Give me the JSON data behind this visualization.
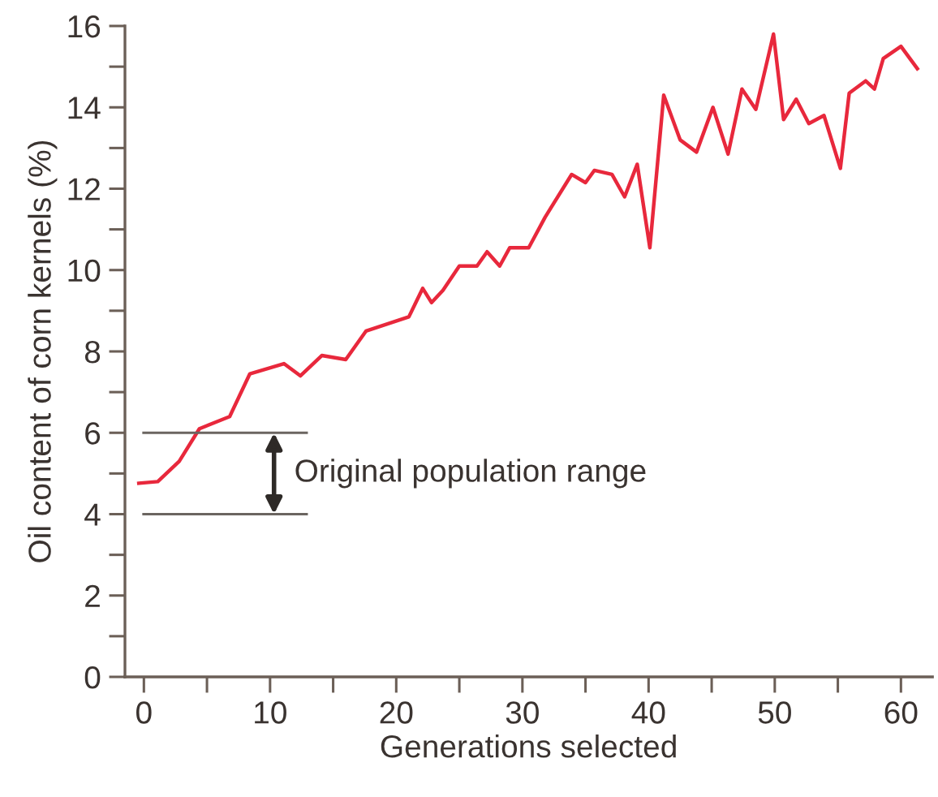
{
  "chart_data": {
    "type": "line",
    "xlabel": "Generations selected",
    "ylabel": "Oil content of corn kernels (%)",
    "xlim": [
      -1.5,
      62.5
    ],
    "ylim": [
      0,
      16
    ],
    "xticks": [
      0,
      {
        "value": 5,
        "label": null
      },
      10,
      {
        "value": 15,
        "label": null
      },
      20,
      {
        "value": 25,
        "label": null
      },
      30,
      {
        "value": 35,
        "label": null
      },
      40,
      {
        "value": 45,
        "label": null
      },
      50,
      {
        "value": 55,
        "label": null
      },
      60
    ],
    "yticks": [
      0,
      {
        "value": 1,
        "label": null
      },
      2,
      {
        "value": 3,
        "label": null
      },
      4,
      {
        "value": 5,
        "label": null
      },
      6,
      {
        "value": 7,
        "label": null
      },
      8,
      {
        "value": 9,
        "label": null
      },
      10,
      {
        "value": 11,
        "label": null
      },
      12,
      {
        "value": 13,
        "label": null
      },
      14,
      {
        "value": 15,
        "label": null
      },
      16
    ],
    "grid": false,
    "marker": "none",
    "line_style": "solid",
    "series": [
      {
        "color": "#e8283c",
        "x": [
          -0.4,
          1.1,
          2.8,
          4.4,
          6.8,
          8.4,
          11.1,
          12.4,
          14.1,
          16.0,
          17.6,
          21.0,
          22.1,
          22.8,
          23.7,
          25.0,
          26.4,
          27.2,
          28.2,
          29.0,
          30.5,
          31.8,
          33.9,
          35.0,
          35.7,
          37.1,
          38.1,
          39.1,
          40.1,
          41.2,
          42.5,
          43.8,
          45.1,
          46.3,
          47.4,
          48.5,
          49.9,
          50.7,
          51.7,
          52.7,
          53.9,
          55.2,
          55.9,
          57.2,
          57.9,
          58.6,
          60.0,
          61.3
        ],
        "values": [
          4.76,
          4.8,
          5.3,
          6.1,
          6.4,
          7.45,
          7.7,
          7.4,
          7.9,
          7.8,
          8.5,
          8.85,
          9.55,
          9.2,
          9.5,
          10.1,
          10.1,
          10.45,
          10.1,
          10.55,
          10.55,
          11.3,
          12.35,
          12.15,
          12.45,
          12.35,
          11.8,
          12.6,
          10.55,
          14.3,
          13.2,
          12.9,
          14.0,
          12.85,
          14.45,
          13.95,
          15.8,
          13.7,
          14.2,
          13.6,
          13.8,
          12.5,
          14.35,
          14.65,
          14.45,
          15.2,
          15.5,
          14.95
        ]
      }
    ],
    "ref_lines": [
      {
        "axis": "y",
        "value": 6,
        "color": "#6b6560"
      },
      {
        "axis": "y",
        "value": 4,
        "color": "#6b6560"
      }
    ],
    "annotations": [
      "Original population range"
    ]
  }
}
